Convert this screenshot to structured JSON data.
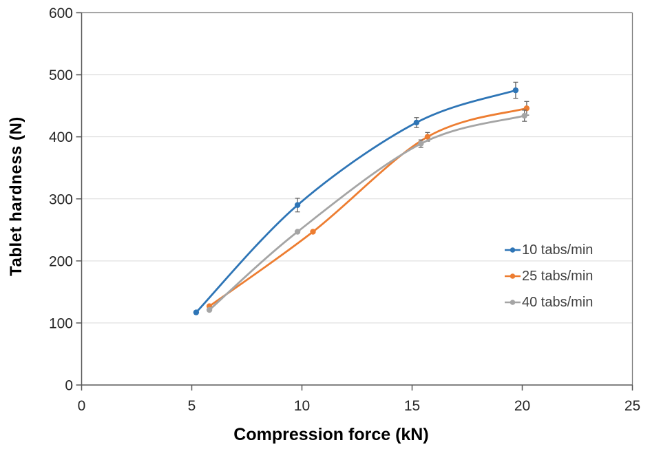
{
  "chart_data": {
    "type": "line",
    "title": "",
    "xlabel": "Compression force (kN)",
    "ylabel": "Tablet hardness (N)",
    "xlim": [
      0,
      25
    ],
    "ylim": [
      0,
      600
    ],
    "xticks": [
      0,
      5,
      10,
      15,
      20,
      25
    ],
    "yticks": [
      0,
      100,
      200,
      300,
      400,
      500,
      600
    ],
    "grid": "horizontal",
    "legend_position": "inside-right-middle",
    "line_style": "smoothed-with-markers-and-error-bars",
    "series": [
      {
        "name": "10 tabs/min",
        "color": "#2E75B6",
        "x": [
          5.2,
          9.8,
          15.2,
          19.7
        ],
        "y": [
          117,
          290,
          423,
          475
        ],
        "yerr": [
          0,
          11,
          8,
          13
        ]
      },
      {
        "name": "25 tabs/min",
        "color": "#ED7D31",
        "x": [
          5.8,
          10.5,
          15.7,
          20.2
        ],
        "y": [
          127,
          247,
          400,
          446
        ],
        "yerr": [
          0,
          0,
          7,
          11
        ]
      },
      {
        "name": "40 tabs/min",
        "color": "#A5A5A5",
        "x": [
          5.8,
          9.8,
          15.4,
          20.1
        ],
        "y": [
          121,
          247,
          389,
          434
        ],
        "yerr": [
          0,
          0,
          6,
          9
        ]
      }
    ]
  },
  "style": {
    "axis_color": "#595959",
    "plot_border_color": "#7F7F7F",
    "grid_color": "#D9D9D9",
    "tick_label_color": "#262626",
    "legend_text_color": "#404040",
    "error_bar_color": "#666666",
    "background": "#FFFFFF"
  }
}
